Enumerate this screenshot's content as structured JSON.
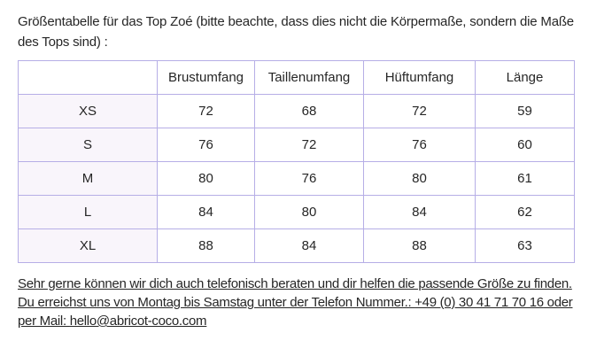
{
  "header": {
    "title_line1": "Größentabelle für das Top Zoé (bitte beachte, dass dies nicht die Körpermaße, sondern die Maße",
    "title_line2": "des Tops sind) :"
  },
  "table": {
    "columns": [
      "",
      "Brustumfang",
      "Taillenumfang",
      "Hüftumfang",
      "Länge"
    ],
    "rows": [
      {
        "size": "XS",
        "values": [
          72,
          68,
          72,
          59
        ]
      },
      {
        "size": "S",
        "values": [
          76,
          72,
          76,
          60
        ]
      },
      {
        "size": "M",
        "values": [
          80,
          76,
          80,
          61
        ]
      },
      {
        "size": "L",
        "values": [
          84,
          80,
          84,
          62
        ]
      },
      {
        "size": "XL",
        "values": [
          88,
          84,
          88,
          63
        ]
      }
    ]
  },
  "footer": {
    "line1": "Sehr gerne können wir dich auch telefonisch beraten und dir helfen die passende Größe zu finden.",
    "line2_prefix": "Du erreichst uns von Montag bis Samstag unter der Telefon Nummer.: ",
    "phone": "+49 (0) 30 41 71 70 16",
    "line2_suffix": " oder",
    "line3_prefix": "per Mail: ",
    "email": "hello@abricot-coco.com"
  },
  "colors": {
    "table_border": "#b6aee6",
    "row_label_bg": "#f9f5fb",
    "text": "#262626"
  }
}
